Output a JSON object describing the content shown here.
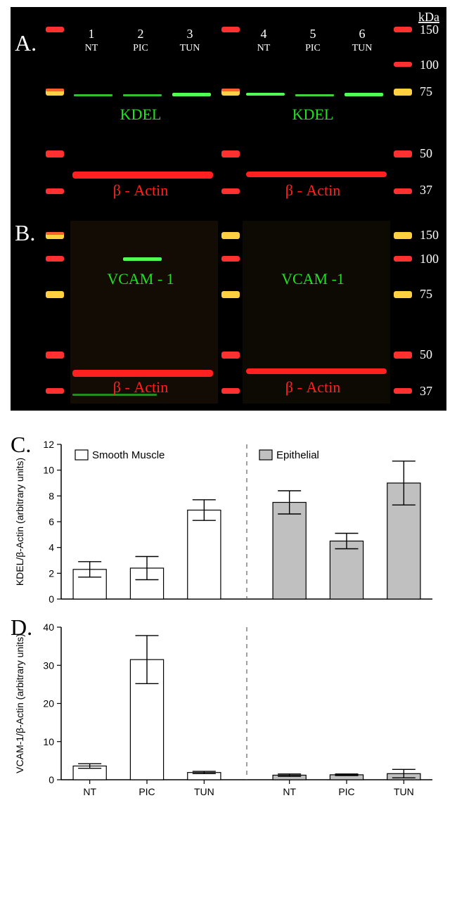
{
  "colors": {
    "blot_bg": "#000000",
    "ladder_red": "#ff3030",
    "ladder_yellow": "#ffd040",
    "band_green": "#30ff30",
    "band_red": "#ff2020",
    "text_white": "#ffffff",
    "series_smooth_muscle_fill": "#ffffff",
    "series_epithelial_fill": "#c0c0c0",
    "axis": "#000000",
    "divider_dash": "#606060"
  },
  "panel_A": {
    "letter": "A.",
    "header_left": "Smooth Muscle",
    "header_right": "Epithelial",
    "kDa_heading": "kDa",
    "lanes": [
      {
        "num": "1",
        "cond": "NT"
      },
      {
        "num": "2",
        "cond": "PIC"
      },
      {
        "num": "3",
        "cond": "TUN"
      },
      {
        "num": "4",
        "cond": "NT"
      },
      {
        "num": "5",
        "cond": "PIC"
      },
      {
        "num": "6",
        "cond": "TUN"
      }
    ],
    "kDa": [
      "150",
      "100",
      "75",
      "50",
      "37"
    ],
    "kDa_y": [
      32,
      82,
      120,
      208,
      260
    ],
    "green_label": "KDEL",
    "red_label": "β - Actin"
  },
  "panel_B": {
    "letter": "B.",
    "kDa": [
      "150",
      "100",
      "75",
      "50",
      "37"
    ],
    "kDa_y": [
      30,
      64,
      115,
      200,
      252
    ],
    "green_label_left": "VCAM - 1",
    "green_label_right": "VCAM -1",
    "red_label": "β - Actin"
  },
  "legend": {
    "smooth_muscle": "Smooth Muscle",
    "epithelial": "Epithelial"
  },
  "chart_C": {
    "letter": "C.",
    "ylabel": "KDEL/β-Actin (arbitrary units)",
    "categories": [
      "NT",
      "PIC",
      "TUN",
      "NT",
      "PIC",
      "TUN"
    ],
    "values": [
      2.3,
      2.4,
      6.9,
      7.5,
      4.5,
      9.0
    ],
    "err": [
      0.6,
      0.9,
      0.8,
      0.9,
      0.6,
      1.7
    ],
    "series": [
      "sm",
      "sm",
      "sm",
      "ep",
      "ep",
      "ep"
    ],
    "ylim": [
      0,
      12
    ],
    "ytick_step": 2,
    "bar_width": 0.58
  },
  "chart_D": {
    "letter": "D.",
    "ylabel": "VCAM-1/β-Actin (arbitrary units)",
    "categories": [
      "NT",
      "PIC",
      "TUN",
      "NT",
      "PIC",
      "TUN"
    ],
    "values": [
      3.6,
      31.5,
      1.9,
      1.2,
      1.3,
      1.6
    ],
    "err": [
      0.6,
      6.3,
      0.3,
      0.3,
      0.2,
      1.1
    ],
    "series": [
      "sm",
      "sm",
      "sm",
      "ep",
      "ep",
      "ep"
    ],
    "ylim": [
      0,
      40
    ],
    "ytick_step": 10,
    "bar_width": 0.58
  }
}
